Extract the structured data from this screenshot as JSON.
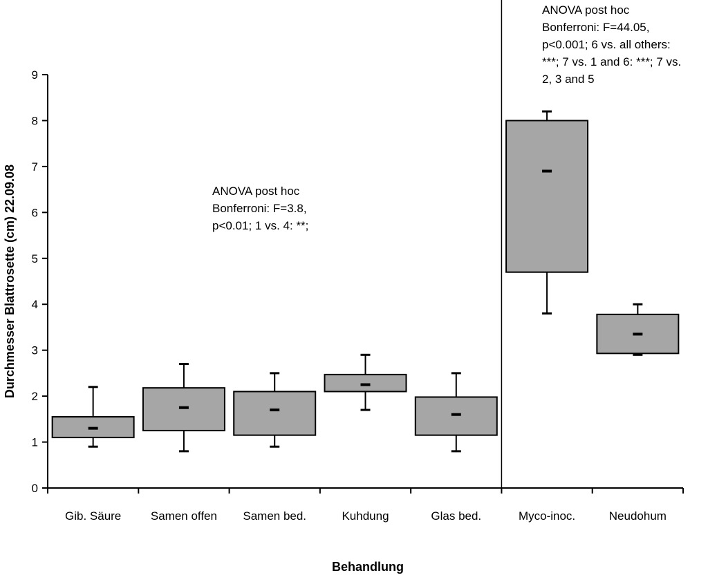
{
  "chart_data": {
    "type": "box",
    "xlabel": "Behandlung",
    "ylabel": "Durchmesser Blattrosette (cm) 22.09.08",
    "ylim": [
      0,
      9
    ],
    "yticks": [
      "0",
      "1",
      "2",
      "3",
      "4",
      "5",
      "6",
      "7",
      "8",
      "9"
    ],
    "categories": [
      "Gib. Säure",
      "Samen offen",
      "Samen bed.",
      "Kuhdung",
      "Glas bed.",
      "Myco-inoc.",
      "Neudohum"
    ],
    "boxes": [
      {
        "min": 0.9,
        "q1": 1.1,
        "mean": 1.3,
        "q3": 1.55,
        "max": 2.2
      },
      {
        "min": 0.8,
        "q1": 1.25,
        "mean": 1.75,
        "q3": 2.18,
        "max": 2.7
      },
      {
        "min": 0.9,
        "q1": 1.15,
        "mean": 1.7,
        "q3": 2.1,
        "max": 2.5
      },
      {
        "min": 1.7,
        "q1": 2.1,
        "mean": 2.25,
        "q3": 2.47,
        "max": 2.9
      },
      {
        "min": 0.8,
        "q1": 1.15,
        "mean": 1.6,
        "q3": 1.98,
        "max": 2.5
      },
      {
        "min": 3.8,
        "q1": 4.7,
        "mean": 6.9,
        "q3": 8.0,
        "max": 8.2
      },
      {
        "min": 2.9,
        "q1": 2.93,
        "mean": 3.35,
        "q3": 3.78,
        "max": 4.0
      }
    ],
    "box_color": "#a6a6a6",
    "divider_after_category": 5,
    "annotations": [
      {
        "lines": [
          "ANOVA post hoc",
          "Bonferroni:  F=3.8,",
          "p<0.01; 1 vs. 4: **;"
        ]
      },
      {
        "lines": [
          "ANOVA post hoc",
          "Bonferroni:  F=44.05,",
          "p<0.001; 6 vs. all others:",
          "***; 7 vs. 1 and 6: ***; 7 vs.",
          "2, 3 and 5"
        ]
      }
    ]
  }
}
